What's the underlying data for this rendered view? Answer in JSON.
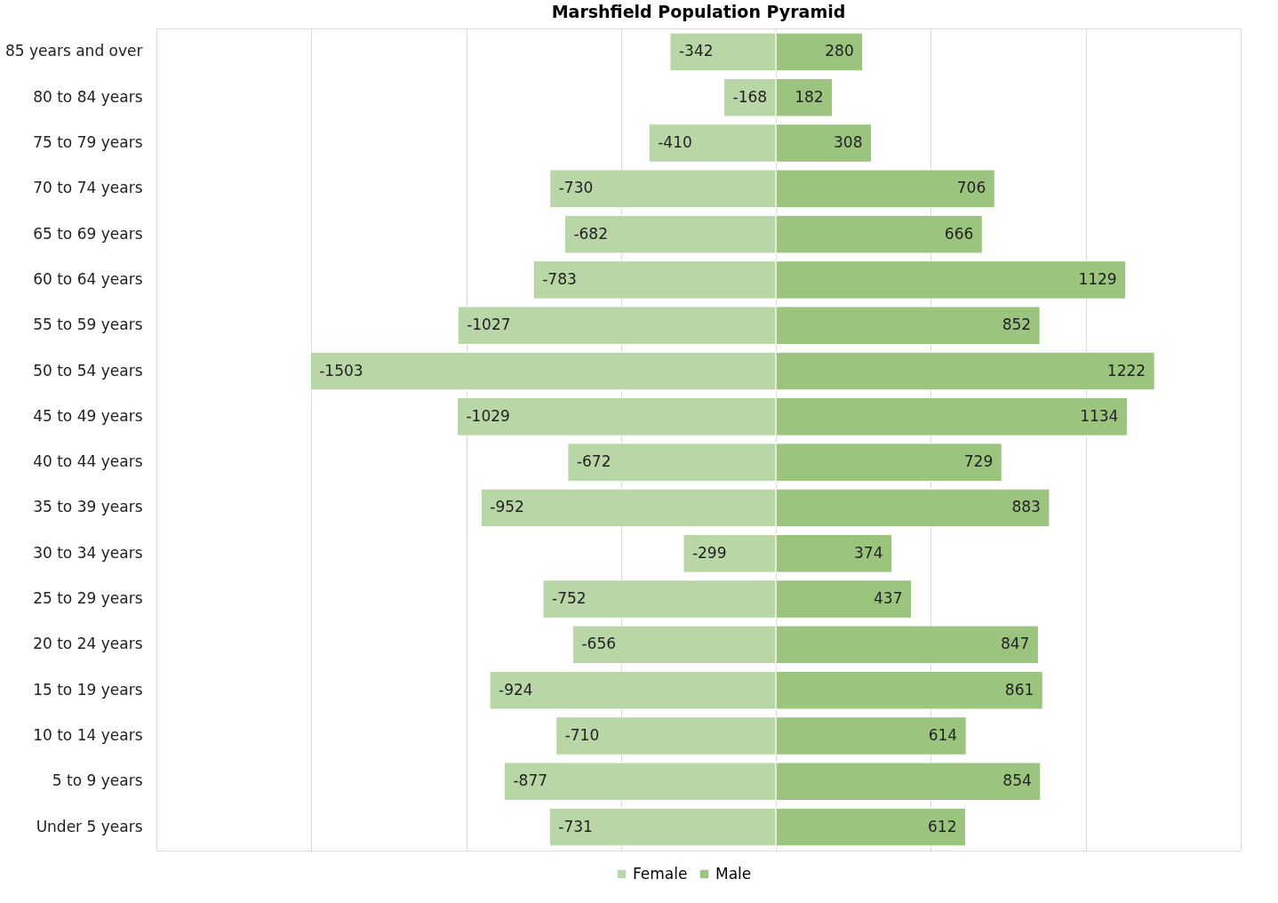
{
  "chart_data": {
    "type": "bar",
    "orientation": "horizontal",
    "stacked": true,
    "title": "Marshfield Population Pyramid",
    "categories": [
      "85 years and over",
      "80 to 84 years",
      "75 to 79 years",
      "70 to 74 years",
      "65 to 69 years",
      "60 to 64 years",
      "55 to 59 years",
      "50 to 54 years",
      "45 to 49 years",
      "40 to 44 years",
      "35 to 39 years",
      "30 to 34 years",
      "25 to 29 years",
      "20 to 24 years",
      "15 to 19 years",
      "10 to 14 years",
      "5 to 9 years",
      "Under 5 years"
    ],
    "series": [
      {
        "name": "Female",
        "color": "#b8d6a6",
        "values": [
          -342,
          -168,
          -410,
          -730,
          -682,
          -783,
          -1027,
          -1503,
          -1029,
          -672,
          -952,
          -299,
          -752,
          -656,
          -924,
          -710,
          -877,
          -731
        ]
      },
      {
        "name": "Male",
        "color": "#9bc47f",
        "values": [
          280,
          182,
          308,
          706,
          666,
          1129,
          852,
          1222,
          1134,
          729,
          883,
          374,
          437,
          847,
          861,
          614,
          854,
          612
        ]
      }
    ],
    "xlim": [
      -2000,
      1500
    ],
    "xticks": [
      {
        "value": -2000,
        "label": null
      },
      {
        "value": -1500,
        "label": null
      },
      {
        "value": -1000,
        "label": null
      },
      {
        "value": -500,
        "label": null
      },
      {
        "value": 0,
        "label": null
      },
      {
        "value": 500,
        "label": null
      },
      {
        "value": 1000,
        "label": null
      },
      {
        "value": 1500,
        "label": null
      }
    ],
    "tick_labels": "y",
    "grid": "x",
    "legend": "bottom",
    "data_labels": true
  }
}
